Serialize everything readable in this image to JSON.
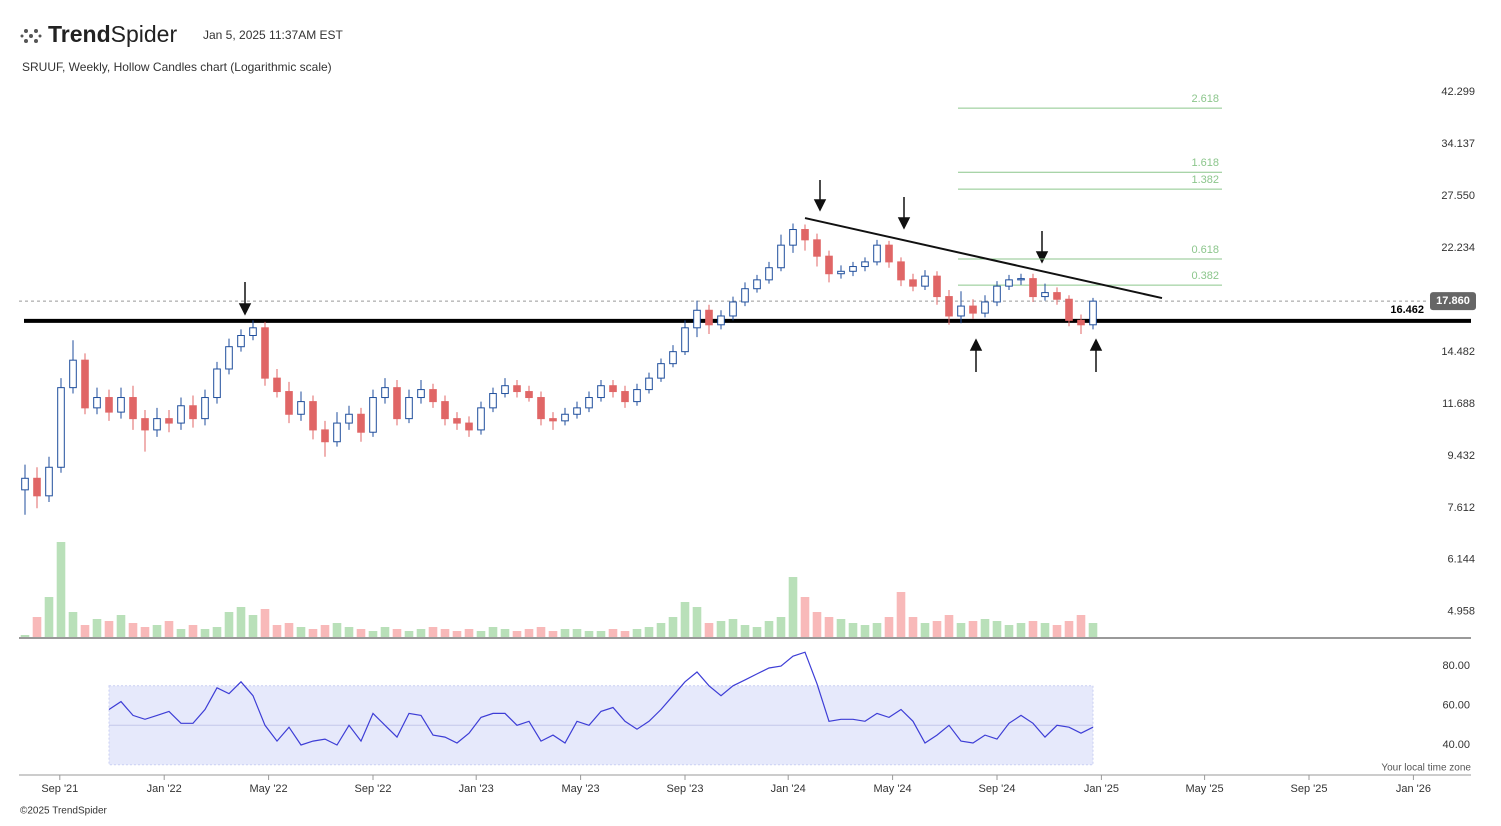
{
  "header": {
    "brand_bold": "Trend",
    "brand_light": "Spider",
    "timestamp": "Jan 5, 2025 11:37AM EST",
    "subtitle": "SRUUF, Weekly, Hollow Candles chart (Logarithmic scale)",
    "timezone_note": "Your local time zone",
    "footer": "©2025 TrendSpider"
  },
  "chart_data": {
    "type": "candlestick",
    "log_scale": true,
    "up_color": "#1f4e9c",
    "down_color": "#e06666",
    "volume_up_color": "#b9e0b9",
    "volume_down_color": "#f8b9b9",
    "open": [
      8.2,
      8.6,
      8.0,
      9.0,
      12.5,
      14.0,
      11.5,
      12.0,
      11.3,
      12.0,
      11.0,
      10.5,
      11.0,
      10.8,
      11.6,
      11.0,
      12.0,
      13.5,
      14.8,
      15.5,
      16.0,
      13.0,
      12.3,
      11.2,
      11.8,
      10.5,
      10.0,
      10.8,
      11.2,
      10.4,
      12.0,
      12.5,
      11.0,
      12.0,
      12.4,
      11.8,
      11.0,
      10.8,
      10.5,
      11.5,
      12.2,
      12.6,
      12.3,
      12.0,
      11.0,
      10.9,
      11.2,
      11.5,
      12.0,
      12.6,
      12.3,
      11.8,
      12.4,
      13.0,
      13.8,
      14.5,
      16.0,
      17.2,
      16.2,
      16.8,
      17.8,
      18.8,
      19.5,
      20.5,
      22.5,
      24.0,
      23.0,
      21.5,
      20.0,
      20.2,
      20.6,
      21.0,
      22.5,
      21.0,
      19.5,
      19.0,
      19.8,
      18.2,
      16.8,
      17.5,
      17.0,
      17.8,
      19.0,
      19.5,
      19.6,
      18.2,
      18.5,
      18.0,
      16.5,
      16.2
    ],
    "high": [
      9.1,
      9.0,
      9.4,
      13.0,
      15.2,
      14.4,
      12.5,
      12.4,
      12.5,
      12.6,
      11.4,
      11.5,
      11.4,
      12.0,
      12.1,
      12.4,
      13.9,
      15.3,
      15.9,
      16.5,
      16.4,
      13.5,
      12.8,
      12.3,
      12.1,
      10.9,
      11.3,
      11.6,
      11.5,
      12.4,
      13.0,
      12.9,
      12.4,
      12.9,
      12.7,
      12.1,
      11.3,
      11.1,
      11.8,
      12.5,
      13.0,
      12.9,
      12.6,
      12.3,
      11.3,
      11.5,
      11.8,
      12.3,
      12.9,
      12.9,
      12.6,
      12.7,
      13.3,
      14.1,
      14.9,
      16.5,
      17.9,
      17.6,
      17.2,
      18.2,
      19.3,
      19.9,
      21.0,
      23.5,
      24.6,
      24.5,
      23.6,
      22.0,
      20.7,
      21.0,
      21.4,
      23.0,
      22.9,
      21.4,
      20.0,
      20.3,
      20.2,
      18.7,
      18.6,
      18.0,
      18.3,
      19.4,
      19.9,
      20.0,
      20.0,
      19.2,
      18.9,
      18.3,
      16.9,
      18.1
    ],
    "low": [
      7.4,
      7.6,
      7.8,
      8.8,
      12.2,
      11.2,
      11.2,
      10.9,
      11.0,
      10.5,
      9.6,
      10.2,
      10.4,
      10.5,
      10.6,
      10.7,
      11.7,
      13.2,
      14.5,
      15.2,
      12.6,
      12.0,
      10.8,
      10.9,
      10.1,
      9.4,
      9.8,
      10.5,
      10.0,
      10.2,
      11.7,
      10.7,
      10.8,
      11.7,
      11.5,
      10.7,
      10.5,
      10.2,
      10.3,
      11.3,
      12.0,
      12.0,
      11.8,
      10.7,
      10.5,
      10.7,
      11.0,
      11.3,
      11.8,
      12.0,
      11.5,
      11.6,
      12.2,
      12.8,
      13.6,
      14.3,
      15.4,
      15.6,
      15.9,
      16.5,
      17.5,
      18.5,
      19.2,
      20.2,
      21.8,
      22.0,
      20.6,
      19.3,
      19.6,
      19.8,
      20.2,
      20.7,
      20.5,
      19.0,
      18.6,
      18.7,
      17.6,
      16.2,
      16.3,
      16.6,
      16.7,
      17.5,
      18.7,
      19.1,
      17.8,
      17.9,
      17.6,
      16.1,
      15.6,
      15.9
    ],
    "close": [
      8.6,
      8.0,
      9.0,
      12.5,
      14.0,
      11.5,
      12.0,
      11.3,
      12.0,
      11.0,
      10.5,
      11.0,
      10.8,
      11.6,
      11.0,
      12.0,
      13.5,
      14.8,
      15.5,
      16.0,
      13.0,
      12.3,
      11.2,
      11.8,
      10.5,
      10.0,
      10.8,
      11.2,
      10.4,
      12.0,
      12.5,
      11.0,
      12.0,
      12.4,
      11.8,
      11.0,
      10.8,
      10.5,
      11.5,
      12.2,
      12.6,
      12.3,
      12.0,
      11.0,
      10.9,
      11.2,
      11.5,
      12.0,
      12.6,
      12.3,
      11.8,
      12.4,
      13.0,
      13.8,
      14.5,
      16.0,
      17.2,
      16.2,
      16.8,
      17.8,
      18.8,
      19.5,
      20.5,
      22.5,
      24.0,
      23.0,
      21.5,
      20.0,
      20.2,
      20.6,
      21.0,
      22.5,
      21.0,
      19.5,
      19.0,
      19.8,
      18.2,
      16.8,
      17.5,
      17.0,
      17.8,
      19.0,
      19.5,
      19.6,
      18.2,
      18.5,
      18.0,
      16.5,
      16.2,
      17.86
    ],
    "volume": [
      2,
      20,
      40,
      95,
      25,
      12,
      18,
      16,
      22,
      14,
      10,
      12,
      16,
      8,
      12,
      8,
      10,
      25,
      30,
      22,
      28,
      12,
      14,
      10,
      8,
      12,
      14,
      10,
      8,
      6,
      10,
      8,
      6,
      8,
      10,
      8,
      6,
      8,
      6,
      10,
      8,
      6,
      8,
      10,
      6,
      8,
      8,
      6,
      6,
      8,
      6,
      8,
      10,
      14,
      20,
      35,
      30,
      14,
      16,
      18,
      12,
      10,
      16,
      20,
      60,
      40,
      25,
      20,
      18,
      14,
      12,
      14,
      20,
      45,
      20,
      14,
      16,
      22,
      14,
      16,
      18,
      16,
      12,
      14,
      16,
      14,
      12,
      16,
      22,
      14
    ],
    "xlim": [
      -0.5,
      120.5
    ],
    "xticks": [
      {
        "value": 2.9,
        "label": "Sep '21"
      },
      {
        "value": 11.6,
        "label": "Jan '22"
      },
      {
        "value": 20.3,
        "label": "May '22"
      },
      {
        "value": 29.0,
        "label": "Sep '22"
      },
      {
        "value": 37.6,
        "label": "Jan '23"
      },
      {
        "value": 46.3,
        "label": "May '23"
      },
      {
        "value": 55.0,
        "label": "Sep '23"
      },
      {
        "value": 63.6,
        "label": "Jan '24"
      },
      {
        "value": 72.3,
        "label": "May '24"
      },
      {
        "value": 81.0,
        "label": "Sep '24"
      },
      {
        "value": 89.7,
        "label": "Jan '25"
      },
      {
        "value": 98.3,
        "label": "May '25"
      },
      {
        "value": 107.0,
        "label": "Sep '25"
      },
      {
        "value": 115.7,
        "label": "Jan '26"
      }
    ],
    "ylim": [
      4.45,
      45.4
    ],
    "yticks": [
      42.299,
      34.137,
      {
        "value": 27.55,
        "label": "27.550"
      },
      22.234,
      14.482,
      11.688,
      9.432,
      7.612,
      6.144,
      4.958
    ],
    "last_price": {
      "value": 17.86,
      "label": "17.860"
    },
    "support": 16.462,
    "trendline": {
      "x": [
        65,
        94.75
      ],
      "y": [
        25.16,
        18.09
      ]
    },
    "fib_levels": [
      {
        "ratio": 2.618,
        "price": 39.6
      },
      {
        "ratio": 1.618,
        "price": 30.4
      },
      {
        "ratio": 1.382,
        "price": 28.35
      },
      {
        "ratio": 0.618,
        "price": 21.25
      },
      {
        "ratio": 0.382,
        "price": 19.08
      }
    ],
    "fib_color": "#8cc68c",
    "rsi": {
      "color": "#3d3dd6",
      "band_color": "#e6e9fb",
      "band": [
        30,
        70
      ],
      "mid": 50,
      "ylim": [
        24.8,
        93.2
      ],
      "yticks": [
        {
          "value": 80,
          "label": "80.00"
        },
        {
          "value": 60,
          "label": "60.00"
        },
        {
          "value": 40,
          "label": "40.00"
        }
      ],
      "values": [
        null,
        null,
        null,
        null,
        null,
        null,
        null,
        58,
        62,
        55,
        53,
        55,
        57,
        51,
        51,
        58,
        69,
        66,
        72,
        65,
        50,
        42,
        49,
        40,
        42,
        43,
        40,
        50,
        42,
        56,
        50,
        44,
        56,
        55,
        45,
        44,
        41,
        46,
        54,
        56,
        56,
        50,
        52,
        42,
        45,
        41,
        52,
        50,
        57,
        59,
        52,
        48,
        52,
        58,
        65,
        72,
        77,
        70,
        65,
        70,
        73,
        76,
        79,
        80,
        85,
        87,
        71,
        52,
        53,
        53,
        52,
        56,
        54,
        58,
        52,
        41,
        45,
        50,
        42,
        41,
        45,
        43,
        51,
        55,
        51,
        44,
        50,
        49,
        46,
        49
      ]
    }
  }
}
